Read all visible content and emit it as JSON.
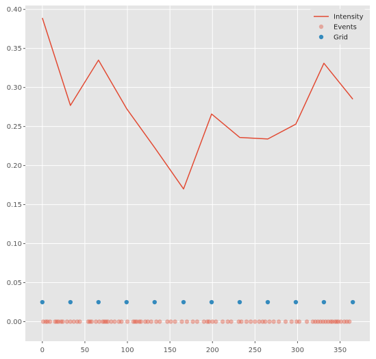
{
  "chart_data": {
    "type": "line",
    "title": "",
    "xlabel": "",
    "ylabel": "",
    "xlim": [
      -20,
      385
    ],
    "ylim": [
      -0.025,
      0.405
    ],
    "grid": true,
    "legend_position": "top-right",
    "xticks": [
      0,
      50,
      100,
      150,
      200,
      250,
      300,
      350
    ],
    "yticks": [
      0.0,
      0.05,
      0.1,
      0.15,
      0.2,
      0.25,
      0.3,
      0.35,
      0.4
    ],
    "xtick_labels": [
      "0",
      "50",
      "100",
      "150",
      "200",
      "250",
      "300",
      "350"
    ],
    "ytick_labels": [
      "0.00",
      "0.05",
      "0.10",
      "0.15",
      "0.20",
      "0.25",
      "0.30",
      "0.35",
      "0.40"
    ],
    "colors": {
      "intensity": "#E24A33",
      "events": "#E24A33",
      "grid_points": "#348ABD",
      "axes_bg": "#E5E5E5",
      "gridline": "#FFFFFF"
    },
    "series": [
      {
        "name": "Intensity",
        "kind": "line",
        "x": [
          0,
          33,
          66,
          99,
          132,
          166,
          199,
          232,
          265,
          298,
          331,
          365
        ],
        "y": [
          0.389,
          0.277,
          0.335,
          0.273,
          0.223,
          0.17,
          0.266,
          0.236,
          0.234,
          0.253,
          0.331,
          0.285
        ]
      },
      {
        "name": "Events",
        "kind": "scatter",
        "alpha": 0.4,
        "x": [
          1,
          4,
          6,
          9,
          15,
          17,
          19,
          22,
          24,
          29,
          33,
          37,
          41,
          44,
          54,
          56,
          58,
          63,
          67,
          71,
          73,
          75,
          77,
          81,
          85,
          90,
          93,
          100,
          107,
          109,
          111,
          114,
          116,
          121,
          124,
          128,
          134,
          138,
          147,
          151,
          156,
          164,
          170,
          177,
          182,
          190,
          194,
          196,
          200,
          204,
          212,
          218,
          222,
          231,
          234,
          240,
          245,
          250,
          255,
          259,
          262,
          267,
          272,
          278,
          286,
          293,
          299,
          302,
          311,
          318,
          321,
          324,
          327,
          330,
          333,
          336,
          339,
          341,
          344,
          346,
          348,
          351,
          355,
          358,
          361
        ],
        "y": 0
      },
      {
        "name": "Grid",
        "kind": "scatter",
        "x": [
          0,
          33,
          66,
          99,
          132,
          166,
          199,
          232,
          265,
          298,
          331,
          365
        ],
        "y": 0.025
      }
    ]
  }
}
